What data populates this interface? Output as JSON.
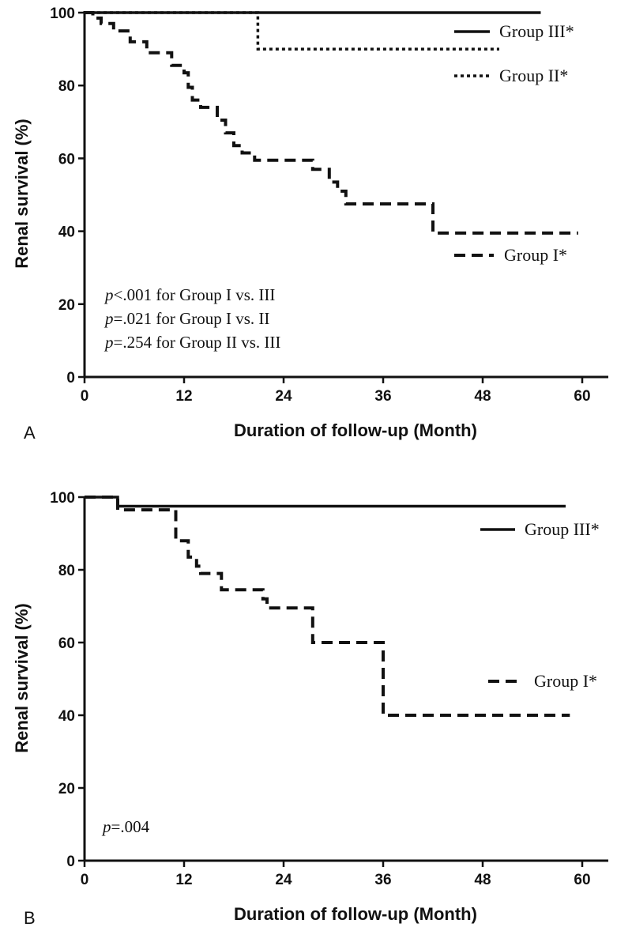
{
  "chart_data": [
    {
      "type": "line",
      "subtype": "kaplan-meier",
      "panel": "A",
      "title": "",
      "xlabel": "Duration of follow-up  (Month)",
      "ylabel": "Renal survival (%)",
      "xlim": [
        0,
        60
      ],
      "ylim": [
        0,
        100
      ],
      "xticks": [
        "0",
        "12",
        "24",
        "36",
        "48",
        "60"
      ],
      "yticks": [
        "0",
        "20",
        "40",
        "60",
        "80",
        "100"
      ],
      "grid": false,
      "legend": "right",
      "series": [
        {
          "name": "Group III*",
          "style": "solid",
          "x": [
            0,
            55
          ],
          "y": [
            100,
            100
          ]
        },
        {
          "name": "Group II*",
          "style": "dotted",
          "x": [
            0,
            20.9,
            20.9,
            50
          ],
          "y": [
            100,
            100,
            90,
            90
          ]
        },
        {
          "name": "Group I*",
          "style": "dashed",
          "x": [
            0,
            1,
            1,
            2,
            2,
            3.5,
            3.5,
            5.5,
            5.5,
            7.5,
            7.5,
            10.5,
            10.5,
            12,
            12,
            12.5,
            12.5,
            13,
            13,
            14,
            14,
            16,
            16,
            17,
            17,
            18,
            18,
            19,
            19,
            20.5,
            20.5,
            27.5,
            27.5,
            29.5,
            29.5,
            30.5,
            30.5,
            31.5,
            31.5,
            42,
            42,
            59.5
          ],
          "y": [
            100,
            100,
            98.5,
            98.5,
            97,
            97,
            95,
            95,
            92,
            92,
            89,
            89,
            85.5,
            85.5,
            83.5,
            83.5,
            79.5,
            79.5,
            76,
            76,
            74,
            74,
            70.5,
            70.5,
            67,
            67,
            63.5,
            63.5,
            61.5,
            61.5,
            59.5,
            59.5,
            57,
            57,
            53.5,
            53.5,
            51,
            51,
            47.5,
            47.5,
            39.5,
            39.5
          ]
        }
      ],
      "annotations": [
        {
          "p": "p",
          "text": "<.001 for Group I vs. III"
        },
        {
          "p": "p",
          "text": "=.021 for Group I vs. II"
        },
        {
          "p": "p",
          "text": "=.254 for Group II vs. III"
        }
      ]
    },
    {
      "type": "line",
      "subtype": "kaplan-meier",
      "panel": "B",
      "title": "",
      "xlabel": "Duration of follow-up  (Month)",
      "ylabel": "Renal survival (%)",
      "xlim": [
        0,
        60
      ],
      "ylim": [
        0,
        100
      ],
      "xticks": [
        "0",
        "12",
        "24",
        "36",
        "48",
        "60"
      ],
      "yticks": [
        "0",
        "20",
        "40",
        "60",
        "80",
        "100"
      ],
      "grid": false,
      "legend": "right",
      "series": [
        {
          "name": "Group III*",
          "style": "solid",
          "x": [
            0,
            4,
            4,
            58
          ],
          "y": [
            100,
            100,
            97.5,
            97.5
          ]
        },
        {
          "name": "Group I*",
          "style": "dashed",
          "x": [
            0,
            4,
            4,
            11,
            11,
            12.5,
            12.5,
            13.5,
            13.5,
            14,
            14,
            16.5,
            16.5,
            21.5,
            21.5,
            22,
            22,
            27.5,
            27.5,
            36,
            36,
            58.5
          ],
          "y": [
            100,
            100,
            96.5,
            96.5,
            88,
            88,
            83.5,
            83.5,
            81,
            81,
            79,
            79,
            74.5,
            74.5,
            72,
            72,
            69.5,
            69.5,
            60,
            60,
            40,
            40
          ]
        }
      ],
      "annotations": [
        {
          "p": "p",
          "text": "=.004"
        }
      ]
    }
  ]
}
